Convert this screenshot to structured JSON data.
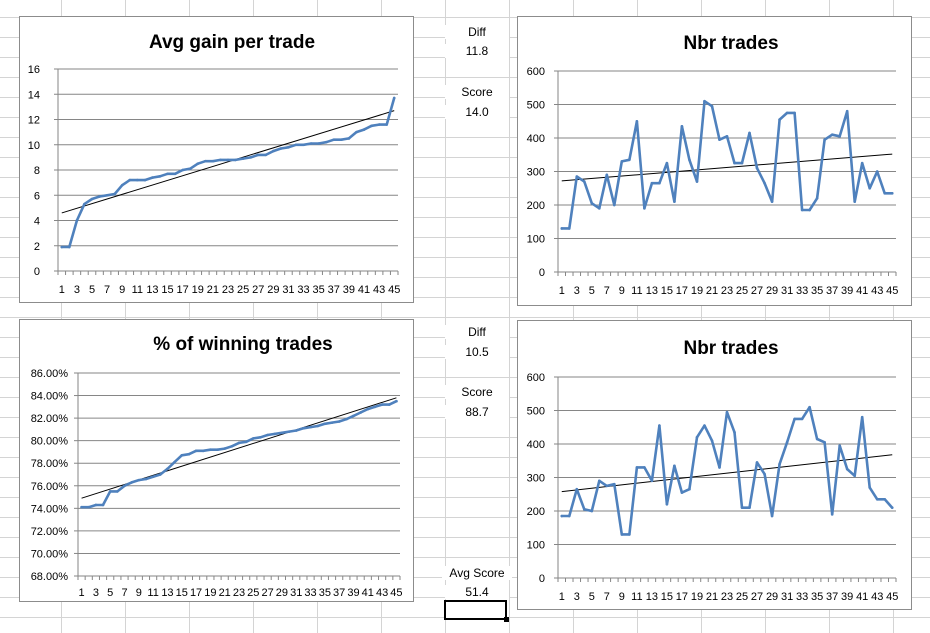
{
  "chart_data": [
    {
      "id": "c1",
      "type": "line",
      "title": "Avg gain per trade",
      "ylim": [
        0,
        16
      ],
      "yticks": [
        0,
        2,
        4,
        6,
        8,
        10,
        12,
        14,
        16
      ],
      "ytick_labels": [
        "0",
        "2",
        "4",
        "6",
        "8",
        "10",
        "12",
        "14",
        "16"
      ],
      "xtick_labels": [
        "1",
        "3",
        "5",
        "7",
        "9",
        "11",
        "13",
        "15",
        "17",
        "19",
        "21",
        "23",
        "25",
        "27",
        "29",
        "31",
        "33",
        "35",
        "37",
        "39",
        "41",
        "43",
        "45"
      ],
      "x": [
        1,
        2,
        3,
        4,
        5,
        6,
        7,
        8,
        9,
        10,
        11,
        12,
        13,
        14,
        15,
        16,
        17,
        18,
        19,
        20,
        21,
        22,
        23,
        24,
        25,
        26,
        27,
        28,
        29,
        30,
        31,
        32,
        33,
        34,
        35,
        36,
        37,
        38,
        39,
        40,
        41,
        42,
        43,
        44,
        45
      ],
      "values": [
        1.9,
        1.9,
        4.0,
        5.3,
        5.7,
        5.9,
        6.0,
        6.1,
        6.8,
        7.2,
        7.2,
        7.2,
        7.4,
        7.5,
        7.7,
        7.7,
        8.0,
        8.1,
        8.5,
        8.7,
        8.7,
        8.8,
        8.8,
        8.8,
        8.9,
        9.0,
        9.2,
        9.2,
        9.5,
        9.7,
        9.8,
        10.0,
        10.0,
        10.1,
        10.1,
        10.2,
        10.4,
        10.4,
        10.5,
        11.0,
        11.2,
        11.5,
        11.6,
        11.6,
        13.7
      ],
      "trendline": [
        4.6,
        12.7
      ],
      "grid": true,
      "legend": "none"
    },
    {
      "id": "c2",
      "type": "line",
      "title": "Nbr trades",
      "ylim": [
        0,
        600
      ],
      "yticks": [
        0,
        100,
        200,
        300,
        400,
        500,
        600
      ],
      "ytick_labels": [
        "0",
        "100",
        "200",
        "300",
        "400",
        "500",
        "600"
      ],
      "xtick_labels": [
        "1",
        "3",
        "5",
        "7",
        "9",
        "11",
        "13",
        "15",
        "17",
        "19",
        "21",
        "23",
        "25",
        "27",
        "29",
        "31",
        "33",
        "35",
        "37",
        "39",
        "41",
        "43",
        "45"
      ],
      "x": [
        1,
        2,
        3,
        4,
        5,
        6,
        7,
        8,
        9,
        10,
        11,
        12,
        13,
        14,
        15,
        16,
        17,
        18,
        19,
        20,
        21,
        22,
        23,
        24,
        25,
        26,
        27,
        28,
        29,
        30,
        31,
        32,
        33,
        34,
        35,
        36,
        37,
        38,
        39,
        40,
        41,
        42,
        43,
        44,
        45
      ],
      "values": [
        130,
        130,
        285,
        270,
        205,
        190,
        290,
        200,
        330,
        335,
        450,
        190,
        265,
        265,
        325,
        210,
        435,
        335,
        270,
        510,
        495,
        395,
        405,
        325,
        325,
        415,
        310,
        265,
        210,
        455,
        475,
        475,
        185,
        185,
        220,
        395,
        410,
        405,
        480,
        210,
        325,
        250,
        300,
        235,
        235
      ],
      "trendline": [
        272,
        352
      ],
      "grid": true,
      "legend": "none"
    },
    {
      "id": "c3",
      "type": "line",
      "title": "% of winning trades",
      "ylim": [
        68,
        86
      ],
      "yticks": [
        68,
        70,
        72,
        74,
        76,
        78,
        80,
        82,
        84,
        86
      ],
      "ytick_labels": [
        "68.00%",
        "70.00%",
        "72.00%",
        "74.00%",
        "76.00%",
        "78.00%",
        "80.00%",
        "82.00%",
        "84.00%",
        "86.00%"
      ],
      "xtick_labels": [
        "1",
        "3",
        "5",
        "7",
        "9",
        "11",
        "13",
        "15",
        "17",
        "19",
        "21",
        "23",
        "25",
        "27",
        "29",
        "31",
        "33",
        "35",
        "37",
        "39",
        "41",
        "43",
        "45"
      ],
      "x": [
        1,
        2,
        3,
        4,
        5,
        6,
        7,
        8,
        9,
        10,
        11,
        12,
        13,
        14,
        15,
        16,
        17,
        18,
        19,
        20,
        21,
        22,
        23,
        24,
        25,
        26,
        27,
        28,
        29,
        30,
        31,
        32,
        33,
        34,
        35,
        36,
        37,
        38,
        39,
        40,
        41,
        42,
        43,
        44,
        45
      ],
      "values": [
        74.1,
        74.1,
        74.3,
        74.3,
        75.5,
        75.5,
        76.0,
        76.3,
        76.5,
        76.6,
        76.8,
        77.0,
        77.5,
        78.1,
        78.7,
        78.8,
        79.1,
        79.1,
        79.2,
        79.2,
        79.3,
        79.5,
        79.8,
        79.9,
        80.2,
        80.3,
        80.5,
        80.6,
        80.7,
        80.8,
        80.9,
        81.1,
        81.2,
        81.3,
        81.5,
        81.6,
        81.7,
        81.9,
        82.2,
        82.5,
        82.8,
        83.0,
        83.2,
        83.2,
        83.5
      ],
      "trendline": [
        74.9,
        83.8
      ],
      "grid": true,
      "legend": "none"
    },
    {
      "id": "c4",
      "type": "line",
      "title": "Nbr trades",
      "ylim": [
        0,
        600
      ],
      "yticks": [
        0,
        100,
        200,
        300,
        400,
        500,
        600
      ],
      "ytick_labels": [
        "0",
        "100",
        "200",
        "300",
        "400",
        "500",
        "600"
      ],
      "xtick_labels": [
        "1",
        "3",
        "5",
        "7",
        "9",
        "11",
        "13",
        "15",
        "17",
        "19",
        "21",
        "23",
        "25",
        "27",
        "29",
        "31",
        "33",
        "35",
        "37",
        "39",
        "41",
        "43",
        "45"
      ],
      "x": [
        1,
        2,
        3,
        4,
        5,
        6,
        7,
        8,
        9,
        10,
        11,
        12,
        13,
        14,
        15,
        16,
        17,
        18,
        19,
        20,
        21,
        22,
        23,
        24,
        25,
        26,
        27,
        28,
        29,
        30,
        31,
        32,
        33,
        34,
        35,
        36,
        37,
        38,
        39,
        40,
        41,
        42,
        43,
        44,
        45
      ],
      "values": [
        185,
        185,
        265,
        205,
        200,
        290,
        275,
        280,
        130,
        130,
        330,
        330,
        290,
        455,
        220,
        335,
        255,
        265,
        420,
        455,
        410,
        330,
        495,
        435,
        210,
        210,
        345,
        310,
        185,
        340,
        405,
        475,
        475,
        510,
        415,
        405,
        190,
        395,
        325,
        305,
        480,
        270,
        235,
        235,
        210
      ],
      "trendline": [
        258,
        368
      ],
      "grid": true,
      "legend": "none"
    }
  ],
  "middle": {
    "diff1_label": "Diff",
    "diff1_value": "11.8",
    "score1_label": "Score",
    "score1_value": "14.0",
    "diff2_label": "Diff",
    "diff2_value": "10.5",
    "score2_label": "Score",
    "score2_value": "88.7",
    "avg_label": "Avg Score",
    "avg_value": "51.4"
  },
  "colors": {
    "series": "#4f81bd",
    "trend": "#000000",
    "grid": "#868686",
    "border": "#8c8c8c"
  }
}
